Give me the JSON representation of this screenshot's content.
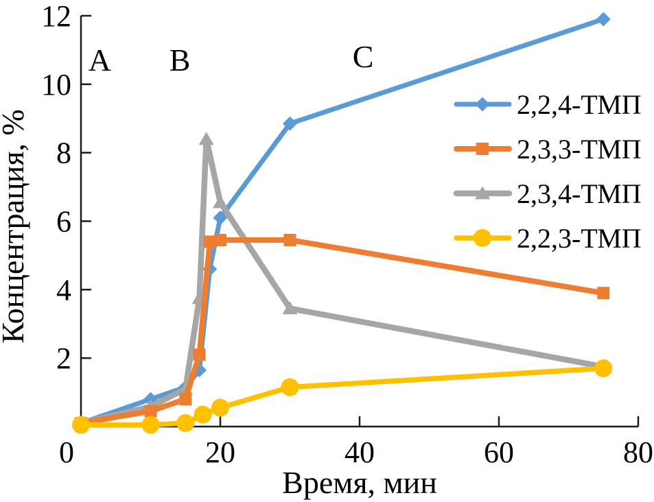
{
  "chart_data": {
    "type": "line",
    "title": "",
    "xlabel": "Время, мин",
    "ylabel": "Концентрация, %",
    "xlim": [
      0,
      80
    ],
    "ylim": [
      0,
      12
    ],
    "x_ticks": [
      0,
      20,
      40,
      60,
      80
    ],
    "y_ticks": [
      2,
      4,
      6,
      8,
      10,
      12
    ],
    "grid": false,
    "legend_position": "inside-upper-right",
    "zone_labels": [
      {
        "text": "A",
        "x": 2.7,
        "y": 10.4
      },
      {
        "text": "B",
        "x": 14.2,
        "y": 10.4
      },
      {
        "text": "C",
        "x": 40.5,
        "y": 10.5
      }
    ],
    "series": [
      {
        "name": "2,2,4-ТМП",
        "color": "#5B9BD5",
        "marker": "diamond",
        "x": [
          0,
          10,
          15,
          17,
          18.5,
          20,
          30,
          75
        ],
        "y": [
          0.1,
          0.8,
          1.15,
          1.65,
          4.6,
          6.1,
          8.85,
          11.9
        ]
      },
      {
        "name": "2,3,3-ТМП",
        "color": "#ED7D31",
        "marker": "square",
        "x": [
          0,
          10,
          15,
          17,
          18.5,
          20,
          30,
          75
        ],
        "y": [
          0.1,
          0.45,
          0.8,
          2.1,
          5.4,
          5.45,
          5.45,
          3.9
        ]
      },
      {
        "name": "2,3,4-ТМП",
        "color": "#A6A6A6",
        "marker": "triangle",
        "x": [
          0,
          10,
          15,
          17,
          18,
          20,
          30,
          75
        ],
        "y": [
          0.1,
          0.58,
          1.1,
          3.75,
          8.4,
          6.55,
          3.45,
          1.75
        ]
      },
      {
        "name": "2,2,3-ТМП",
        "color": "#FFC000",
        "marker": "circle",
        "x": [
          0,
          10,
          15,
          17.5,
          20,
          30,
          75
        ],
        "y": [
          0.05,
          0.05,
          0.1,
          0.35,
          0.55,
          1.15,
          1.7
        ]
      }
    ],
    "axis_color": "#1a1a1a"
  }
}
